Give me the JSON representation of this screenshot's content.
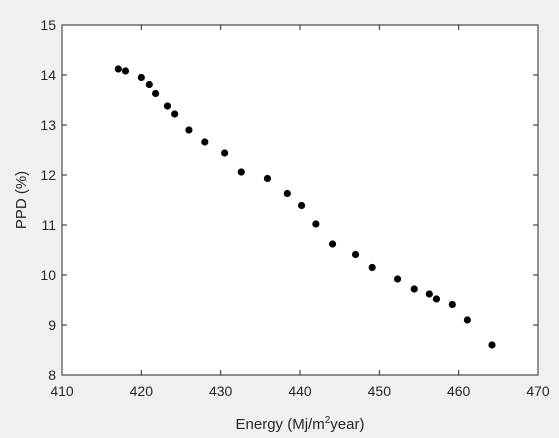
{
  "chart_data": {
    "type": "scatter",
    "xlabel": {
      "prefix": "Energy (Mj/m",
      "sup": "2",
      "suffix": "year)"
    },
    "ylabel": "PPD (%)",
    "xlim": [
      410,
      470
    ],
    "ylim": [
      8,
      15
    ],
    "xticks": [
      410,
      420,
      430,
      440,
      450,
      460,
      470
    ],
    "yticks": [
      8,
      9,
      10,
      11,
      12,
      13,
      14,
      15
    ],
    "grid": false,
    "marker_color": "#000000",
    "x": [
      417.1,
      418.0,
      420.0,
      421.0,
      421.8,
      423.3,
      424.2,
      426.0,
      428.0,
      430.5,
      432.6,
      435.9,
      438.4,
      440.2,
      442.0,
      444.1,
      447.0,
      449.1,
      452.3,
      454.4,
      456.3,
      457.2,
      459.2,
      461.1,
      464.2
    ],
    "y": [
      14.12,
      14.08,
      13.95,
      13.81,
      13.63,
      13.38,
      13.22,
      12.9,
      12.66,
      12.44,
      12.06,
      11.93,
      11.63,
      11.39,
      11.02,
      10.62,
      10.41,
      10.15,
      9.92,
      9.72,
      9.62,
      9.52,
      9.41,
      9.1,
      8.6
    ]
  }
}
